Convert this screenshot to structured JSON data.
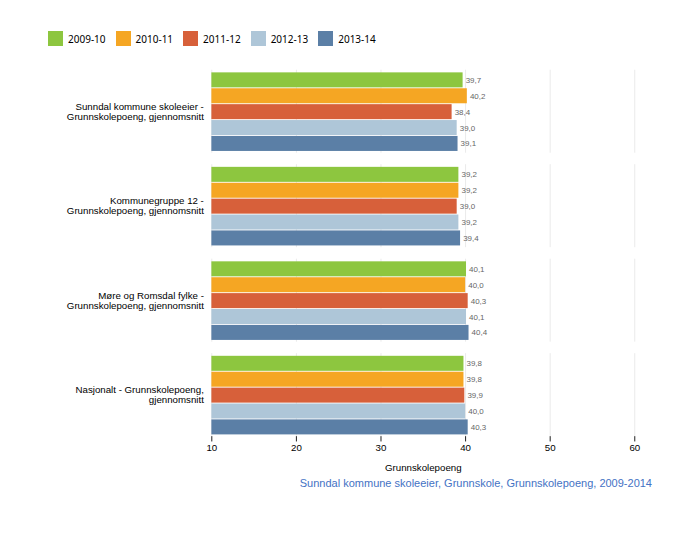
{
  "chart_data": {
    "type": "bar",
    "orientation": "horizontal",
    "categories": [
      "Sunndal kommune skoleeier -\nGrunnskolepoeng, gjennomsnitt",
      "Kommunegruppe 12 -\nGrunnskolepoeng, gjennomsnitt",
      "Møre og Romsdal fylke -\nGrunnskolepoeng, gjennomsnitt",
      "Nasjonalt - Grunnskolepoeng,\ngjennomsnitt"
    ],
    "series": [
      {
        "name": "2009-10",
        "color": "#8dc63f",
        "values": [
          39.7,
          39.2,
          40.1,
          39.8
        ],
        "value_labels": [
          "39,7",
          "39,2",
          "40,1",
          "39,8"
        ]
      },
      {
        "name": "2010-11",
        "color": "#f5a623",
        "values": [
          40.2,
          39.2,
          40.0,
          39.8
        ],
        "value_labels": [
          "40,2",
          "39,2",
          "40,0",
          "39,8"
        ]
      },
      {
        "name": "2011-12",
        "color": "#d7603a",
        "values": [
          38.4,
          39.0,
          40.3,
          39.9
        ],
        "value_labels": [
          "38,4",
          "39,0",
          "40,3",
          "39,9"
        ]
      },
      {
        "name": "2012-13",
        "color": "#aec6d8",
        "values": [
          39.0,
          39.2,
          40.1,
          40.0
        ],
        "value_labels": [
          "39,0",
          "39,2",
          "40,1",
          "40,0"
        ]
      },
      {
        "name": "2013-14",
        "color": "#5b7fa6",
        "values": [
          39.1,
          39.4,
          40.4,
          40.3
        ],
        "value_labels": [
          "39,1",
          "39,4",
          "40,4",
          "40,3"
        ]
      }
    ],
    "xlabel": "Grunnskolepoeng",
    "xlim": [
      10,
      60
    ],
    "xticks": [
      10,
      20,
      30,
      40,
      50,
      60
    ],
    "grid": true,
    "legend": "top",
    "data_labels": true,
    "caption": "Sunndal kommune skoleeier, Grunnskole, Grunnskolepoeng, 2009-2014"
  }
}
